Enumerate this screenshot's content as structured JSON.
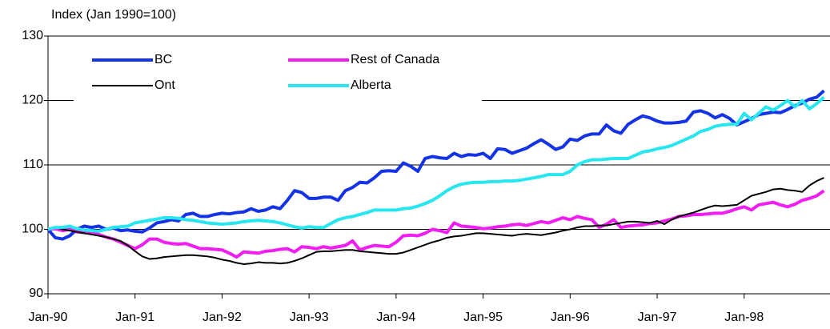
{
  "chart_data": {
    "type": "line",
    "y_label": "Index (Jan 1990=100)",
    "x": [
      "Jan-90",
      null,
      null,
      null,
      null,
      null,
      null,
      null,
      null,
      null,
      null,
      null,
      "Jan-91",
      null,
      null,
      null,
      null,
      null,
      null,
      null,
      null,
      null,
      null,
      null,
      "Jan-92",
      null,
      null,
      null,
      null,
      null,
      null,
      null,
      null,
      null,
      null,
      null,
      "Jan-93",
      null,
      null,
      null,
      null,
      null,
      null,
      null,
      null,
      null,
      null,
      null,
      "Jan-94",
      null,
      null,
      null,
      null,
      null,
      null,
      null,
      null,
      null,
      null,
      null,
      "Jan-95",
      null,
      null,
      null,
      null,
      null,
      null,
      null,
      null,
      null,
      null,
      null,
      "Jan-96",
      null,
      null,
      null,
      null,
      null,
      null,
      null,
      null,
      null,
      null,
      null,
      "Jan-97",
      null,
      null,
      null,
      null,
      null,
      null,
      null,
      null,
      null,
      null,
      null,
      "Jan-98",
      null,
      null,
      null,
      null,
      null,
      null,
      null,
      null,
      null,
      null,
      null
    ],
    "series": [
      {
        "name": "BC",
        "color": "#1432e6",
        "linewidth": 4,
        "values": [
          100,
          98.7,
          98.5,
          99,
          100,
          100.5,
          100.3,
          100.5,
          100,
          100.2,
          99.8,
          99.9,
          99.7,
          99.6,
          100.2,
          101,
          101.2,
          101.5,
          101.3,
          102.3,
          102.5,
          102,
          102,
          102.3,
          102.5,
          102.4,
          102.6,
          102.7,
          103.2,
          102.8,
          103,
          103.5,
          103.2,
          104.5,
          106,
          105.7,
          104.8,
          104.8,
          105,
          105,
          104.5,
          106,
          106.5,
          107.3,
          107.2,
          108,
          109,
          109.1,
          109,
          110.3,
          109.8,
          109,
          111,
          111.3,
          111.1,
          111,
          111.8,
          111.3,
          111.6,
          111.5,
          111.8,
          111,
          112.5,
          112.4,
          111.8,
          112.2,
          112.6,
          113.3,
          113.9,
          113.2,
          112.4,
          112.8,
          114,
          113.8,
          114.5,
          114.8,
          114.8,
          116.2,
          115.3,
          114.9,
          116.3,
          117,
          117.6,
          117.3,
          116.8,
          116.5,
          116.5,
          116.6,
          116.8,
          118.2,
          118.4,
          118,
          117.3,
          117.8,
          117.2,
          116.2,
          116.7,
          117.2,
          117.8,
          118,
          118.2,
          118.1,
          118.6,
          119.2,
          119.6,
          120.2,
          120.5,
          121.5
        ]
      },
      {
        "name": "Rest of Canada",
        "color": "#f01ef0",
        "linewidth": 4,
        "values": [
          100,
          100.1,
          99.8,
          100,
          99.6,
          99.5,
          99.5,
          99.2,
          98.8,
          98.5,
          98,
          97.5,
          97,
          97.6,
          98.5,
          98.5,
          98,
          97.8,
          97.7,
          97.8,
          97.4,
          97,
          97,
          96.9,
          96.8,
          96.3,
          95.7,
          96.5,
          96.4,
          96.3,
          96.6,
          96.7,
          96.9,
          97,
          96.5,
          97.3,
          97.2,
          97,
          97.3,
          97.1,
          97.3,
          97.5,
          98.2,
          96.8,
          97.2,
          97.5,
          97.4,
          97.3,
          98,
          99,
          99.1,
          99,
          99.4,
          100,
          99.8,
          99.5,
          101,
          100.5,
          100.4,
          100.3,
          100.1,
          100.2,
          100.4,
          100.5,
          100.7,
          100.8,
          100.6,
          100.9,
          101.2,
          101,
          101.4,
          101.8,
          101.5,
          102,
          101.7,
          101.5,
          100.3,
          100.8,
          101.5,
          100.3,
          100.5,
          100.6,
          100.7,
          100.9,
          101,
          101.3,
          101.6,
          102,
          102.1,
          102.3,
          102.3,
          102.4,
          102.5,
          102.5,
          102.8,
          103.2,
          103.5,
          103,
          103.8,
          104,
          104.2,
          103.8,
          103.5,
          103.9,
          104.5,
          104.8,
          105.2,
          106
        ]
      },
      {
        "name": "Ont",
        "color": "#000000",
        "linewidth": 2,
        "values": [
          100,
          100.3,
          100,
          99.8,
          99.6,
          99.4,
          99.2,
          99,
          98.8,
          98.5,
          98.2,
          97.5,
          96.6,
          95.8,
          95.4,
          95.5,
          95.7,
          95.8,
          95.9,
          96,
          96,
          95.9,
          95.8,
          95.6,
          95.3,
          95.1,
          94.8,
          94.6,
          94.7,
          94.9,
          94.8,
          94.8,
          94.7,
          94.8,
          95.1,
          95.5,
          96,
          96.5,
          96.6,
          96.6,
          96.7,
          96.8,
          96.8,
          96.6,
          96.5,
          96.4,
          96.3,
          96.2,
          96.2,
          96.4,
          96.8,
          97.2,
          97.6,
          98,
          98.3,
          98.7,
          98.9,
          99,
          99.2,
          99.4,
          99.4,
          99.3,
          99.2,
          99.1,
          99,
          99.2,
          99.3,
          99.2,
          99.1,
          99.3,
          99.5,
          99.8,
          100,
          100.3,
          100.5,
          100.5,
          100.6,
          100.6,
          100.8,
          101,
          101.2,
          101.2,
          101.1,
          101,
          101.3,
          100.8,
          101.5,
          102,
          102.3,
          102.6,
          103,
          103.4,
          103.7,
          103.6,
          103.7,
          103.8,
          104.5,
          105.2,
          105.5,
          105.8,
          106.2,
          106.3,
          106.1,
          106,
          105.8,
          106.8,
          107.5,
          108
        ]
      },
      {
        "name": "Alberta",
        "color": "#28e6f0",
        "linewidth": 4,
        "values": [
          100,
          100.3,
          100.3,
          100.5,
          100.1,
          99.9,
          99.8,
          99.7,
          100,
          100.3,
          100.4,
          100.5,
          101,
          101.2,
          101.4,
          101.6,
          101.8,
          101.8,
          101.7,
          101.5,
          101.4,
          101.2,
          101,
          100.9,
          100.8,
          100.9,
          101,
          101.2,
          101.3,
          101.4,
          101.3,
          101.2,
          101,
          100.7,
          100.4,
          100.2,
          100.4,
          100.3,
          100.3,
          100.9,
          101.5,
          101.8,
          102,
          102.3,
          102.6,
          103,
          103,
          103,
          103,
          103.2,
          103.3,
          103.6,
          104,
          104.5,
          105.2,
          106,
          106.6,
          107,
          107.2,
          107.3,
          107.3,
          107.4,
          107.4,
          107.5,
          107.5,
          107.6,
          107.8,
          108,
          108.2,
          108.5,
          108.5,
          108.5,
          109,
          110,
          110.5,
          110.8,
          110.8,
          110.9,
          111,
          111,
          111,
          111.5,
          112,
          112.2,
          112.5,
          112.7,
          113,
          113.5,
          114,
          114.5,
          115.2,
          115.5,
          116,
          116.2,
          116.3,
          116.3,
          118,
          117,
          118,
          119,
          118.5,
          119.2,
          120,
          119,
          120,
          118.7,
          119.5,
          120.5
        ]
      }
    ],
    "ylim": [
      90,
      130
    ],
    "yticks": [
      90,
      100,
      110,
      120,
      130
    ],
    "grid": true,
    "legend": "upper left"
  }
}
